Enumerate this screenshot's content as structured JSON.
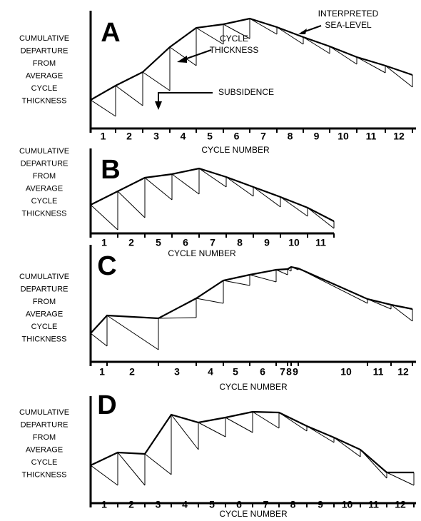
{
  "panels": [
    {
      "letter": "A",
      "y_axis_label": [
        "CUMULATIVE",
        "DEPARTURE",
        "FROM",
        "AVERAGE",
        "CYCLE",
        "THICKNESS"
      ],
      "cycle_numbers": [
        "1",
        "2",
        "3",
        "4",
        "5",
        "6",
        "7",
        "8",
        "9",
        "10",
        "11",
        "12"
      ],
      "x_axis_label": "CYCLE NUMBER"
    },
    {
      "letter": "B",
      "y_axis_label": [
        "CUMULATIVE",
        "DEPARTURE",
        "FROM",
        "AVERAGE",
        "CYCLE",
        "THICKNESS"
      ],
      "cycle_numbers": [
        "1",
        "2",
        "5",
        "6",
        "7",
        "8",
        "9",
        "10",
        "11"
      ],
      "x_axis_label": "CYCLE NUMBER"
    },
    {
      "letter": "C",
      "y_axis_label": [
        "CUMULATIVE",
        "DEPARTURE",
        "FROM",
        "AVERAGE",
        "CYCLE",
        "THICKNESS"
      ],
      "cycle_numbers": [
        "1",
        "2",
        "3",
        "4",
        "5",
        "6",
        "7",
        "8",
        "9",
        "10",
        "11",
        "12"
      ],
      "x_axis_label": "CYCLE NUMBER"
    },
    {
      "letter": "D",
      "y_axis_label": [
        "CUMULATIVE",
        "DEPARTURE",
        "FROM",
        "AVERAGE",
        "CYCLE",
        "THICKNESS"
      ],
      "cycle_numbers": [
        "1",
        "2",
        "3",
        "4",
        "5",
        "6",
        "7",
        "8",
        "9",
        "10",
        "11",
        "12"
      ],
      "x_axis_label": "CYCLE NUMBER"
    }
  ],
  "annotations": {
    "sea_level": [
      "INTERPRETED",
      "SEA-LEVEL"
    ],
    "cycle_thickness": [
      "CYCLE",
      "THICKNESS"
    ],
    "subsidence": "SUBSIDENCE"
  }
}
